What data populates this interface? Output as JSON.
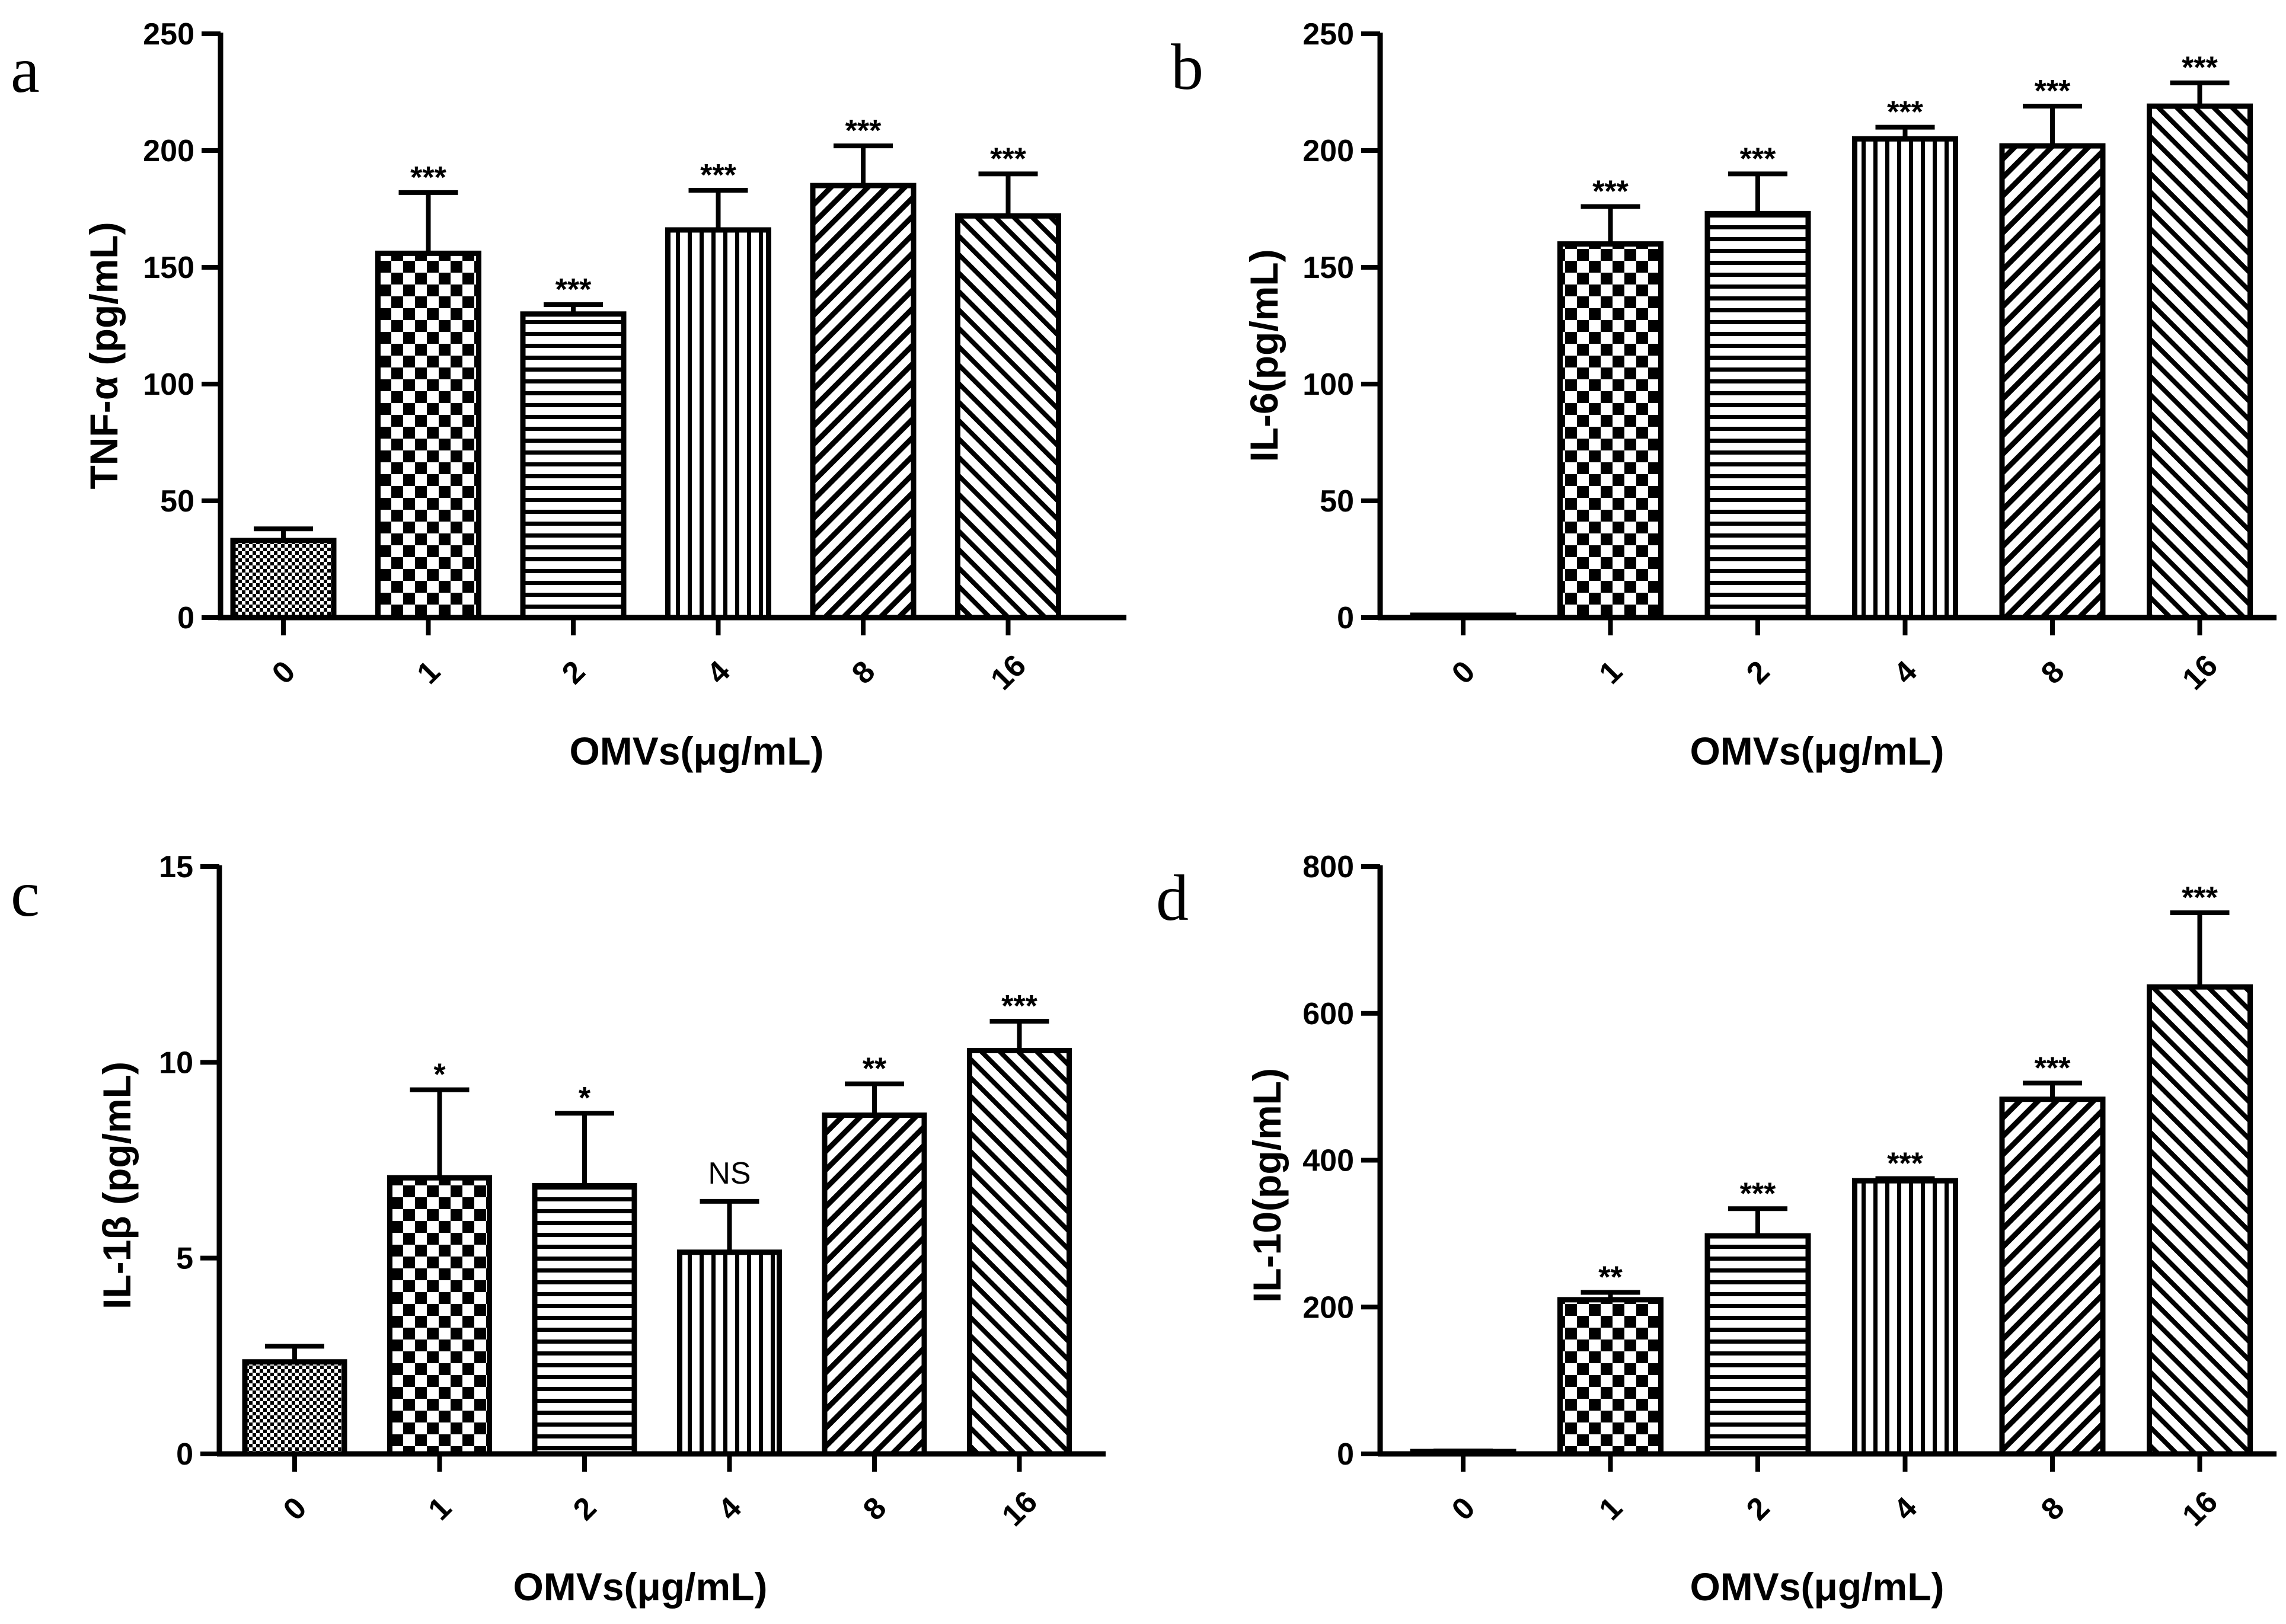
{
  "chart_data": [
    {
      "panel": "a",
      "type": "bar",
      "xlabel": "OMVs(μg/mL)",
      "ylabel": "TNF-α (pg/mL)",
      "categories": [
        "0",
        "1",
        "2",
        "4",
        "8",
        "16"
      ],
      "values": [
        33,
        156,
        130,
        166,
        185,
        172
      ],
      "errors": [
        5,
        26,
        4,
        17,
        17,
        18
      ],
      "significance": [
        "",
        "***",
        "***",
        "***",
        "***",
        "***"
      ],
      "patterns": [
        "fine-check",
        "checker",
        "hlines",
        "vlines",
        "diag-up",
        "diag-down"
      ],
      "ylim": [
        0,
        250
      ],
      "yticks": [
        0,
        50,
        100,
        150,
        200,
        250
      ]
    },
    {
      "panel": "b",
      "type": "bar",
      "xlabel": "OMVs(μg/mL)",
      "ylabel": "IL-6(pg/mL)",
      "categories": [
        "0",
        "1",
        "2",
        "4",
        "8",
        "16"
      ],
      "values": [
        0.5,
        160,
        173,
        205,
        202,
        219
      ],
      "errors": [
        0.5,
        16,
        17,
        5,
        17,
        10
      ],
      "significance": [
        "",
        "***",
        "***",
        "***",
        "***",
        "***"
      ],
      "patterns": [
        "fine-check",
        "checker",
        "hlines",
        "vlines",
        "diag-up",
        "diag-down"
      ],
      "ylim": [
        0,
        250
      ],
      "yticks": [
        0,
        50,
        100,
        150,
        200,
        250
      ]
    },
    {
      "panel": "c",
      "type": "bar",
      "xlabel": "OMVs(μg/mL)",
      "ylabel": "IL-1β (pg/mL)",
      "categories": [
        "0",
        "1",
        "2",
        "4",
        "8",
        "16"
      ],
      "values": [
        2.35,
        7.05,
        6.85,
        5.15,
        8.65,
        10.3
      ],
      "errors": [
        0.4,
        2.25,
        1.85,
        1.3,
        0.8,
        0.75
      ],
      "significance": [
        "",
        "*",
        "*",
        "NS",
        "**",
        "***"
      ],
      "patterns": [
        "fine-check",
        "checker",
        "hlines",
        "vlines",
        "diag-up",
        "diag-down"
      ],
      "ylim": [
        0,
        15
      ],
      "yticks": [
        0,
        5,
        10,
        15
      ]
    },
    {
      "panel": "d",
      "type": "bar",
      "xlabel": "OMVs(μg/mL)",
      "ylabel": "IL-10(pg/mL)",
      "categories": [
        "0",
        "1",
        "2",
        "4",
        "8",
        "16"
      ],
      "values": [
        2,
        210,
        297,
        372,
        483,
        636
      ],
      "errors": [
        2,
        10,
        37,
        3,
        22,
        101
      ],
      "significance": [
        "",
        "**",
        "***",
        "***",
        "***",
        "***"
      ],
      "patterns": [
        "fine-check",
        "checker",
        "hlines",
        "vlines",
        "diag-up",
        "diag-down"
      ],
      "ylim": [
        0,
        800
      ],
      "yticks": [
        0,
        200,
        400,
        600,
        800
      ]
    }
  ],
  "colors": {
    "ink": "#000000",
    "background": "#ffffff"
  }
}
